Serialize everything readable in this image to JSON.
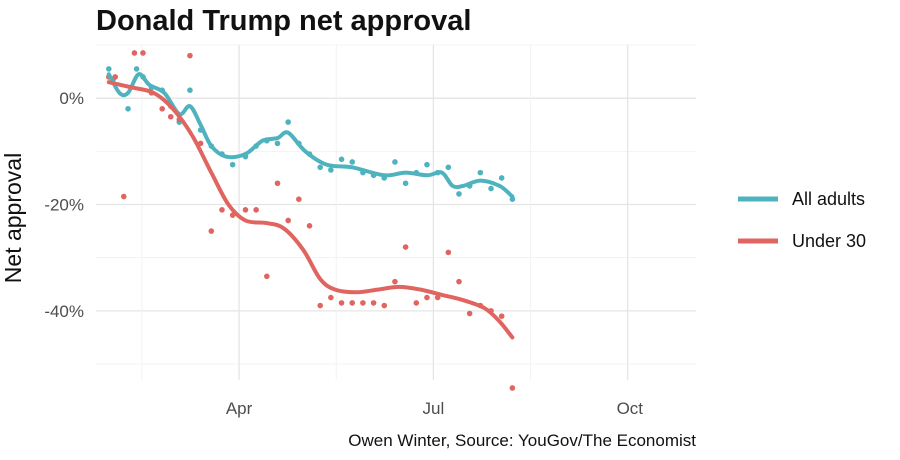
{
  "chart_data": {
    "type": "scatter",
    "title": "Donald Trump net approval",
    "ylabel": "Net approval",
    "xlabel": "",
    "caption": "Owen Winter, Source: YouGov/The Economist",
    "x_axis": {
      "type": "date",
      "range": [
        "2025-01-24",
        "2025-11-01"
      ],
      "ticks": [
        {
          "value": "2025-04-01",
          "label": "Apr"
        },
        {
          "value": "2025-07-01",
          "label": "Jul"
        },
        {
          "value": "2025-10-01",
          "label": "Oct"
        }
      ]
    },
    "y_axis": {
      "range": [
        -53,
        10
      ],
      "ticks": [
        {
          "value": 0,
          "label": "0%"
        },
        {
          "value": -20,
          "label": "-20%"
        },
        {
          "value": -40,
          "label": "-40%"
        }
      ]
    },
    "grid": true,
    "legend": {
      "position": "right"
    },
    "series": [
      {
        "name": "All adults",
        "color": "#4fb3bf",
        "points": [
          {
            "x": "2025-01-30",
            "y": 5.5
          },
          {
            "x": "2025-02-01",
            "y": 3.5
          },
          {
            "x": "2025-02-08",
            "y": -2
          },
          {
            "x": "2025-02-12",
            "y": 5.5
          },
          {
            "x": "2025-02-15",
            "y": 4
          },
          {
            "x": "2025-02-19",
            "y": 2
          },
          {
            "x": "2025-02-24",
            "y": 1.5
          },
          {
            "x": "2025-02-28",
            "y": -1.5
          },
          {
            "x": "2025-03-04",
            "y": -4.5
          },
          {
            "x": "2025-03-09",
            "y": 1.5
          },
          {
            "x": "2025-03-14",
            "y": -6
          },
          {
            "x": "2025-03-19",
            "y": -9
          },
          {
            "x": "2025-03-24",
            "y": -10.5
          },
          {
            "x": "2025-03-29",
            "y": -12.5
          },
          {
            "x": "2025-04-04",
            "y": -11
          },
          {
            "x": "2025-04-09",
            "y": -9
          },
          {
            "x": "2025-04-14",
            "y": -8
          },
          {
            "x": "2025-04-19",
            "y": -8.5
          },
          {
            "x": "2025-04-24",
            "y": -4.5
          },
          {
            "x": "2025-04-29",
            "y": -8.5
          },
          {
            "x": "2025-05-04",
            "y": -10.5
          },
          {
            "x": "2025-05-09",
            "y": -13
          },
          {
            "x": "2025-05-14",
            "y": -13.5
          },
          {
            "x": "2025-05-19",
            "y": -11.5
          },
          {
            "x": "2025-05-24",
            "y": -12
          },
          {
            "x": "2025-05-29",
            "y": -14
          },
          {
            "x": "2025-06-03",
            "y": -14.5
          },
          {
            "x": "2025-06-08",
            "y": -15
          },
          {
            "x": "2025-06-13",
            "y": -12
          },
          {
            "x": "2025-06-18",
            "y": -16
          },
          {
            "x": "2025-06-23",
            "y": -14
          },
          {
            "x": "2025-06-28",
            "y": -12.5
          },
          {
            "x": "2025-07-03",
            "y": -14
          },
          {
            "x": "2025-07-08",
            "y": -13
          },
          {
            "x": "2025-07-13",
            "y": -18
          },
          {
            "x": "2025-07-18",
            "y": -16.5
          },
          {
            "x": "2025-07-23",
            "y": -14
          },
          {
            "x": "2025-07-28",
            "y": -17
          },
          {
            "x": "2025-08-02",
            "y": -15
          },
          {
            "x": "2025-08-07",
            "y": -19
          }
        ],
        "smooth": [
          {
            "x": "2025-01-30",
            "y": 4.5
          },
          {
            "x": "2025-02-04",
            "y": 1
          },
          {
            "x": "2025-02-08",
            "y": 1
          },
          {
            "x": "2025-02-13",
            "y": 4.5
          },
          {
            "x": "2025-02-18",
            "y": 2.5
          },
          {
            "x": "2025-02-25",
            "y": 1
          },
          {
            "x": "2025-03-04",
            "y": -3
          },
          {
            "x": "2025-03-09",
            "y": -1.5
          },
          {
            "x": "2025-03-14",
            "y": -5
          },
          {
            "x": "2025-03-19",
            "y": -9
          },
          {
            "x": "2025-03-26",
            "y": -11
          },
          {
            "x": "2025-04-04",
            "y": -10.5
          },
          {
            "x": "2025-04-12",
            "y": -8
          },
          {
            "x": "2025-04-19",
            "y": -7.5
          },
          {
            "x": "2025-04-24",
            "y": -6.5
          },
          {
            "x": "2025-05-02",
            "y": -10
          },
          {
            "x": "2025-05-12",
            "y": -12.5
          },
          {
            "x": "2025-05-24",
            "y": -13
          },
          {
            "x": "2025-06-08",
            "y": -14.5
          },
          {
            "x": "2025-06-18",
            "y": -14
          },
          {
            "x": "2025-06-28",
            "y": -14.5
          },
          {
            "x": "2025-07-05",
            "y": -14
          },
          {
            "x": "2025-07-10",
            "y": -16.5
          },
          {
            "x": "2025-07-15",
            "y": -16.5
          },
          {
            "x": "2025-07-23",
            "y": -15.5
          },
          {
            "x": "2025-08-01",
            "y": -16.5
          },
          {
            "x": "2025-08-07",
            "y": -18.5
          }
        ]
      },
      {
        "name": "Under 30",
        "color": "#e06560",
        "points": [
          {
            "x": "2025-01-30",
            "y": 4
          },
          {
            "x": "2025-02-02",
            "y": 4
          },
          {
            "x": "2025-02-06",
            "y": -18.5
          },
          {
            "x": "2025-02-11",
            "y": 8.5
          },
          {
            "x": "2025-02-15",
            "y": 8.5
          },
          {
            "x": "2025-02-19",
            "y": 1
          },
          {
            "x": "2025-02-24",
            "y": -2
          },
          {
            "x": "2025-02-28",
            "y": -3.5
          },
          {
            "x": "2025-03-04",
            "y": -4
          },
          {
            "x": "2025-03-09",
            "y": 8
          },
          {
            "x": "2025-03-14",
            "y": -8.5
          },
          {
            "x": "2025-03-19",
            "y": -25
          },
          {
            "x": "2025-03-24",
            "y": -21
          },
          {
            "x": "2025-03-29",
            "y": -22
          },
          {
            "x": "2025-04-04",
            "y": -21
          },
          {
            "x": "2025-04-09",
            "y": -21
          },
          {
            "x": "2025-04-14",
            "y": -33.5
          },
          {
            "x": "2025-04-19",
            "y": -16
          },
          {
            "x": "2025-04-24",
            "y": -23
          },
          {
            "x": "2025-04-29",
            "y": -19
          },
          {
            "x": "2025-05-04",
            "y": -24
          },
          {
            "x": "2025-05-09",
            "y": -39
          },
          {
            "x": "2025-05-14",
            "y": -37.5
          },
          {
            "x": "2025-05-19",
            "y": -38.5
          },
          {
            "x": "2025-05-24",
            "y": -38.5
          },
          {
            "x": "2025-05-29",
            "y": -38.5
          },
          {
            "x": "2025-06-03",
            "y": -38.5
          },
          {
            "x": "2025-06-08",
            "y": -39
          },
          {
            "x": "2025-06-13",
            "y": -34.5
          },
          {
            "x": "2025-06-18",
            "y": -28
          },
          {
            "x": "2025-06-23",
            "y": -38.5
          },
          {
            "x": "2025-06-28",
            "y": -37.5
          },
          {
            "x": "2025-07-03",
            "y": -37.5
          },
          {
            "x": "2025-07-08",
            "y": -29
          },
          {
            "x": "2025-07-13",
            "y": -34.5
          },
          {
            "x": "2025-07-18",
            "y": -40.5
          },
          {
            "x": "2025-07-23",
            "y": -39
          },
          {
            "x": "2025-07-28",
            "y": -40
          },
          {
            "x": "2025-08-02",
            "y": -41
          },
          {
            "x": "2025-08-07",
            "y": -54.5
          }
        ],
        "smooth": [
          {
            "x": "2025-01-30",
            "y": 3
          },
          {
            "x": "2025-02-10",
            "y": 2
          },
          {
            "x": "2025-02-20",
            "y": 1
          },
          {
            "x": "2025-03-01",
            "y": -2
          },
          {
            "x": "2025-03-10",
            "y": -7
          },
          {
            "x": "2025-03-19",
            "y": -14
          },
          {
            "x": "2025-03-27",
            "y": -20
          },
          {
            "x": "2025-04-04",
            "y": -23
          },
          {
            "x": "2025-04-14",
            "y": -23.5
          },
          {
            "x": "2025-04-22",
            "y": -24.5
          },
          {
            "x": "2025-05-01",
            "y": -28.5
          },
          {
            "x": "2025-05-09",
            "y": -34
          },
          {
            "x": "2025-05-16",
            "y": -36
          },
          {
            "x": "2025-05-26",
            "y": -36.5
          },
          {
            "x": "2025-06-05",
            "y": -36
          },
          {
            "x": "2025-06-15",
            "y": -35.5
          },
          {
            "x": "2025-06-25",
            "y": -36
          },
          {
            "x": "2025-07-05",
            "y": -37
          },
          {
            "x": "2025-07-15",
            "y": -38
          },
          {
            "x": "2025-07-25",
            "y": -39.5
          },
          {
            "x": "2025-08-01",
            "y": -42
          },
          {
            "x": "2025-08-07",
            "y": -45
          }
        ]
      }
    ]
  }
}
